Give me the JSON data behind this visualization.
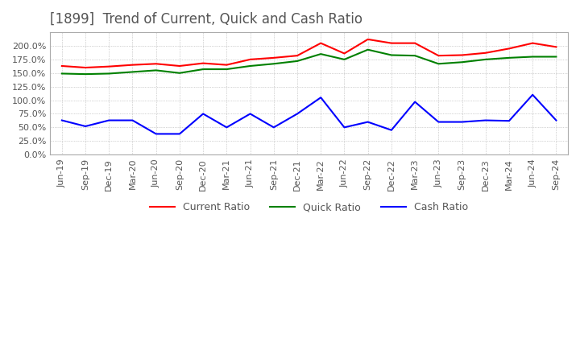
{
  "title": "[1899]  Trend of Current, Quick and Cash Ratio",
  "title_fontsize": 12,
  "title_color": "#555555",
  "x_labels": [
    "Jun-19",
    "Sep-19",
    "Dec-19",
    "Mar-20",
    "Jun-20",
    "Sep-20",
    "Dec-20",
    "Mar-21",
    "Jun-21",
    "Sep-21",
    "Dec-21",
    "Mar-22",
    "Jun-22",
    "Sep-22",
    "Dec-22",
    "Mar-23",
    "Jun-23",
    "Sep-23",
    "Dec-23",
    "Mar-24",
    "Jun-24",
    "Sep-24"
  ],
  "current_ratio": [
    1.63,
    1.6,
    1.62,
    1.65,
    1.67,
    1.63,
    1.68,
    1.65,
    1.75,
    1.78,
    1.82,
    2.05,
    1.86,
    2.12,
    2.05,
    2.05,
    1.82,
    1.83,
    1.87,
    1.95,
    2.05,
    1.98
  ],
  "quick_ratio": [
    1.49,
    1.48,
    1.49,
    1.52,
    1.55,
    1.5,
    1.57,
    1.57,
    1.63,
    1.67,
    1.72,
    1.85,
    1.75,
    1.93,
    1.83,
    1.82,
    1.67,
    1.7,
    1.75,
    1.78,
    1.8,
    1.8
  ],
  "cash_ratio": [
    0.63,
    0.52,
    0.63,
    0.63,
    0.38,
    0.38,
    0.75,
    0.5,
    0.75,
    0.5,
    0.75,
    1.05,
    0.5,
    0.6,
    0.45,
    0.97,
    0.6,
    0.6,
    0.63,
    0.62,
    1.1,
    0.63
  ],
  "current_color": "#FF0000",
  "quick_color": "#008000",
  "cash_color": "#0000FF",
  "ylim": [
    0.0,
    2.25
  ],
  "yticks": [
    0.0,
    0.25,
    0.5,
    0.75,
    1.0,
    1.25,
    1.5,
    1.75,
    2.0
  ],
  "grid_color": "#aaaaaa",
  "bg_color": "#ffffff",
  "legend_labels": [
    "Current Ratio",
    "Quick Ratio",
    "Cash Ratio"
  ]
}
